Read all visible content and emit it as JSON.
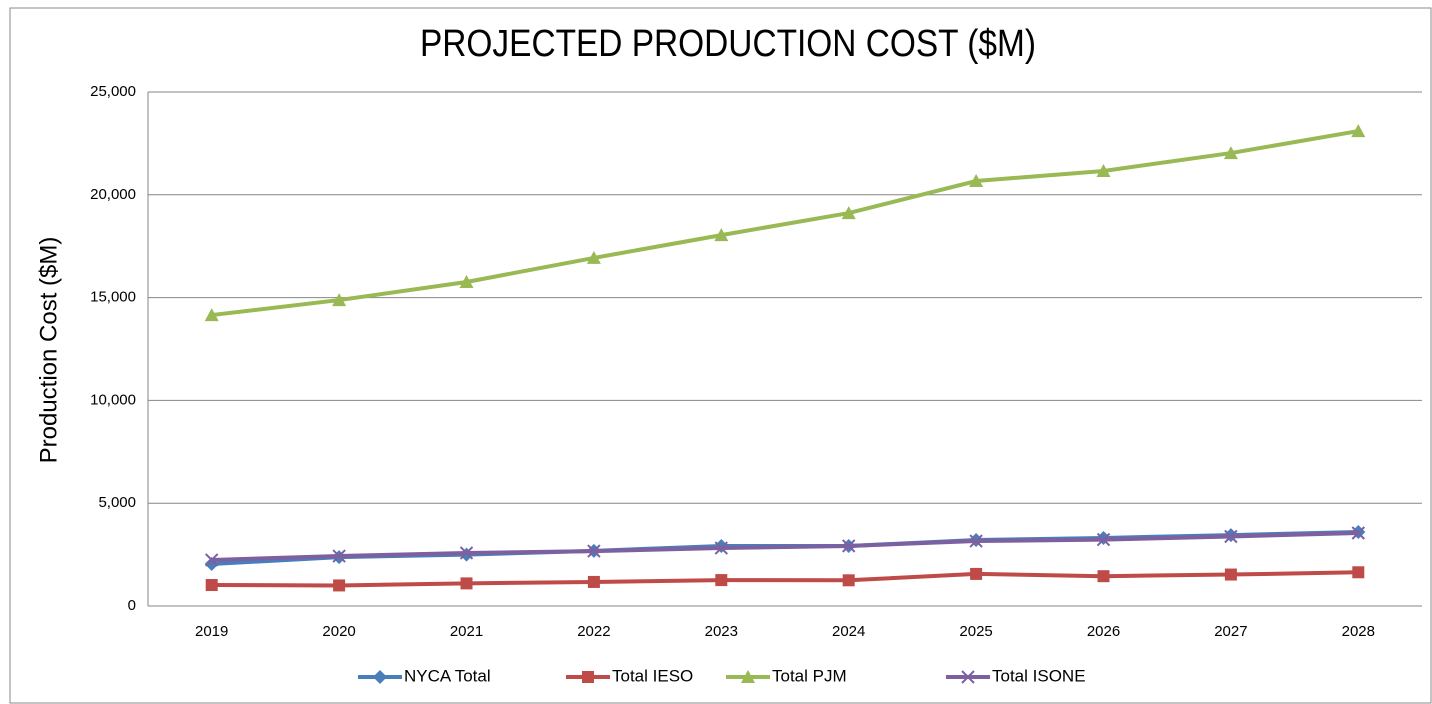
{
  "chart_data": {
    "type": "line",
    "title": "PROJECTED PRODUCTION COST ($M)",
    "y_label": "Production Cost ($M)",
    "categories": [
      "2019",
      "2020",
      "2021",
      "2022",
      "2023",
      "2024",
      "2025",
      "2026",
      "2027",
      "2028"
    ],
    "series": [
      {
        "name": "NYCA Total",
        "color": "#4a7ebb",
        "marker": "diamond",
        "values": [
          2040,
          2380,
          2500,
          2680,
          2920,
          2920,
          3210,
          3310,
          3450,
          3600
        ]
      },
      {
        "name": "Total IESO",
        "color": "#be4b48",
        "marker": "square",
        "values": [
          1020,
          1000,
          1100,
          1170,
          1260,
          1250,
          1560,
          1450,
          1530,
          1640
        ]
      },
      {
        "name": "Total PJM",
        "color": "#98b954",
        "marker": "triangle",
        "values": [
          14150,
          14880,
          15760,
          16930,
          18040,
          19110,
          20670,
          21160,
          22030,
          23100
        ]
      },
      {
        "name": "Total ISONE",
        "color": "#7d60a0",
        "marker": "x",
        "values": [
          2240,
          2430,
          2580,
          2670,
          2820,
          2920,
          3160,
          3230,
          3380,
          3550
        ]
      }
    ],
    "ylim": [
      0,
      25000
    ],
    "yticks": [
      0,
      {
        "value": 5000,
        "label": "5,000"
      },
      {
        "value": 10000,
        "label": "10,000"
      },
      {
        "value": 15000,
        "label": "15,000"
      },
      {
        "value": 20000,
        "label": "20,000"
      },
      {
        "value": 25000,
        "label": "25,000"
      }
    ],
    "grid": true,
    "legend": "bottom"
  }
}
